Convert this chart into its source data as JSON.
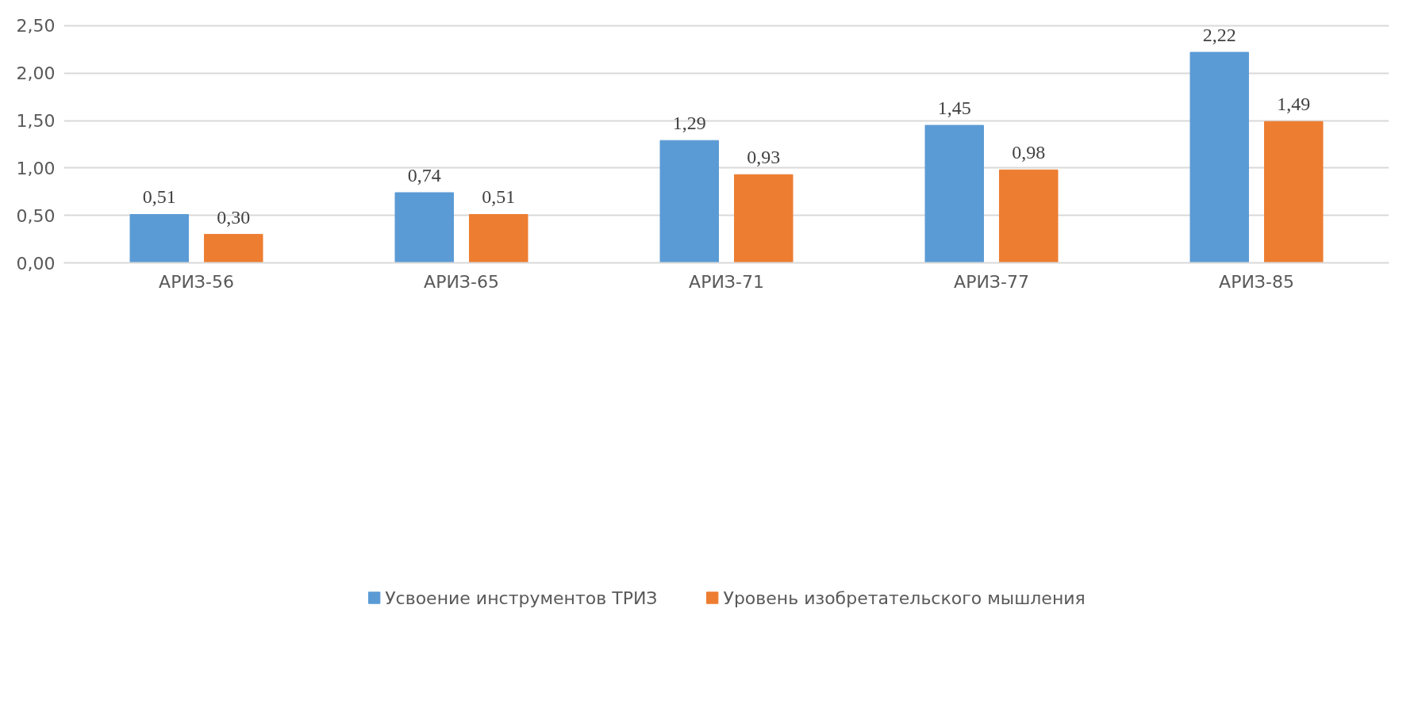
{
  "chart_data": {
    "type": "bar",
    "categories": [
      "АРИЗ-56",
      "АРИЗ-65",
      "АРИЗ-71",
      "АРИЗ-77",
      "АРИЗ-85"
    ],
    "series": [
      {
        "name": "Усвоение инструментов ТРИЗ",
        "color": "#5b9bd5",
        "values": [
          0.51,
          0.74,
          1.29,
          1.45,
          2.22
        ],
        "value_labels": [
          "0,51",
          "0,74",
          "1,29",
          "1,45",
          "2,22"
        ]
      },
      {
        "name": "Уровень изобретательского мышления",
        "color": "#ed7d31",
        "values": [
          0.3,
          0.51,
          0.93,
          0.98,
          1.49
        ],
        "value_labels": [
          "0,30",
          "0,51",
          "0,93",
          "0,98",
          "1,49"
        ]
      }
    ],
    "ylim": [
      0,
      2.5
    ],
    "yticks": [
      {
        "value": 0,
        "label": "0,00"
      },
      {
        "value": 0.5,
        "label": "0,50"
      },
      {
        "value": 1.0,
        "label": "1,00"
      },
      {
        "value": 1.5,
        "label": "1,50"
      },
      {
        "value": 2.0,
        "label": "2,00"
      },
      {
        "value": 2.5,
        "label": "2,50"
      }
    ],
    "grid": "y",
    "legend": "bottom"
  }
}
